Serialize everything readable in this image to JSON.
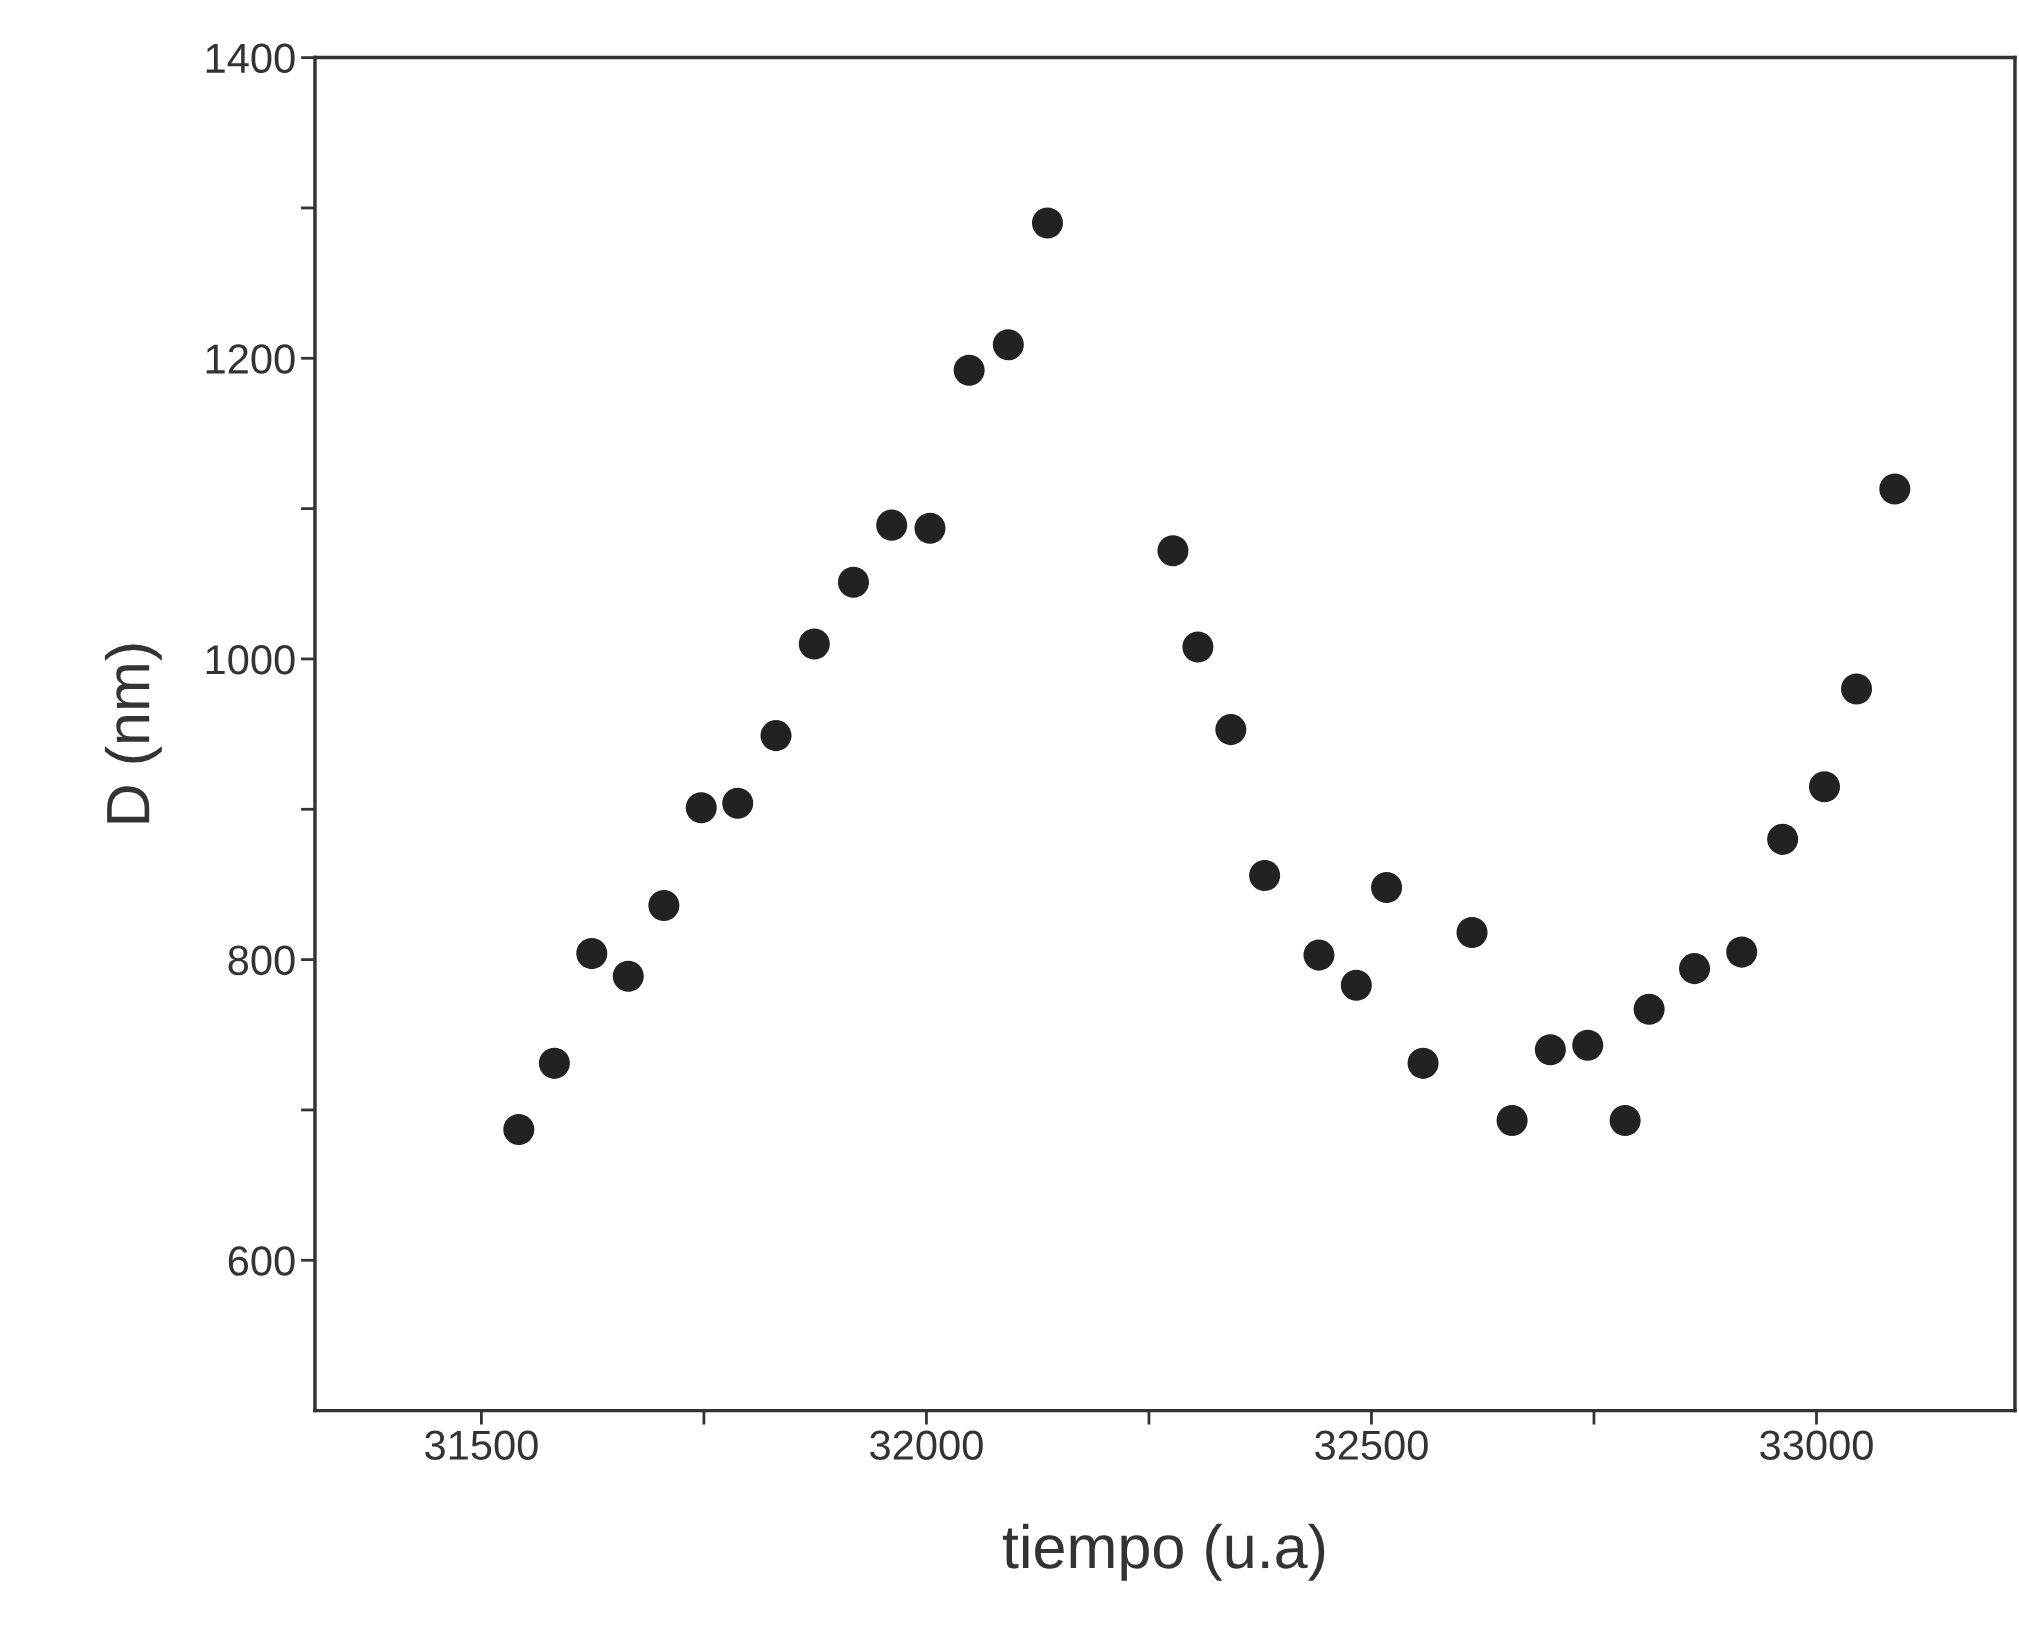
{
  "chart_data": {
    "type": "scatter",
    "xlabel": "tiempo (u.a)",
    "ylabel": "D (nm)",
    "x": [
      31542,
      31582,
      31624,
      31665,
      31705,
      31747,
      31788,
      31831,
      31874,
      31918,
      31961,
      32004,
      32048,
      32092,
      32136,
      32277,
      32305,
      32342,
      32380,
      32441,
      32483,
      32517,
      32558,
      32613,
      32658,
      32701,
      32743,
      32785,
      32812,
      32863,
      32916,
      32962,
      33009,
      33045,
      33088
    ],
    "series": [
      {
        "color": "#222222",
        "values": [
          687,
          731,
          804,
          789,
          836,
          901,
          904,
          949,
          1010,
          1051,
          1089,
          1087,
          1192,
          1209,
          1290,
          1072,
          1008,
          953,
          856,
          803,
          783,
          848,
          731,
          818,
          693,
          740,
          743,
          693,
          767,
          794,
          805,
          880,
          915,
          980,
          1113
        ]
      }
    ],
    "xlim": [
      31313,
      33223
    ],
    "ylim": [
      500,
      1400
    ],
    "xticks": [
      31500,
      {
        "value": 31750,
        "label": null
      },
      32000,
      {
        "value": 32250,
        "label": null
      },
      32500,
      {
        "value": 32750,
        "label": null
      },
      33000
    ],
    "yticks": [
      600,
      {
        "value": 700,
        "label": null
      },
      800,
      {
        "value": 900,
        "label": null
      },
      1000,
      {
        "value": 1100,
        "label": null
      },
      1200,
      {
        "value": 1300,
        "label": null
      },
      1400
    ],
    "marker": "circle",
    "grid": false
  }
}
